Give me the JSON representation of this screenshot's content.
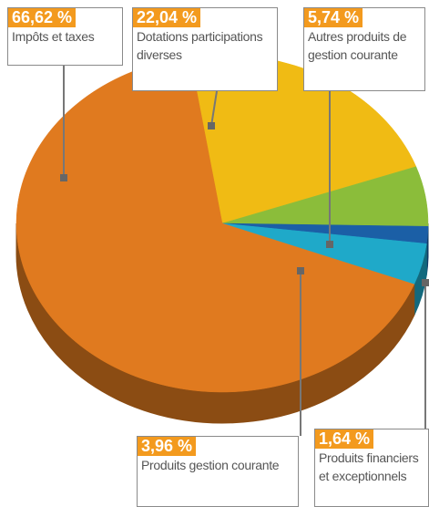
{
  "chart_data": {
    "type": "pie",
    "categories": [
      "Dotations participations diverses",
      "Autres produits de gestion courante",
      "Produits financiers et exceptionnels",
      "Produits gestion courante",
      "Impôts et taxes"
    ],
    "values": [
      22.04,
      5.74,
      1.64,
      3.96,
      66.62
    ],
    "value_labels": [
      "22,04 %",
      "5,74 %",
      "1,64 %",
      "3,96 %",
      "66,62 %"
    ],
    "colors": [
      "#f0bb14",
      "#8bbd3a",
      "#1b5fa6",
      "#1fa9c9",
      "#e07a1f"
    ]
  }
}
